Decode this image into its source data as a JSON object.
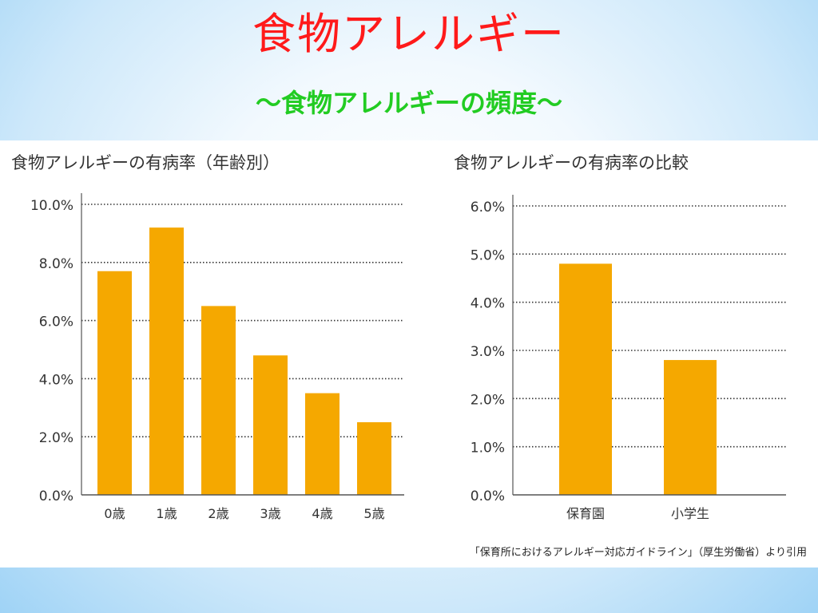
{
  "slide": {
    "title": "食物アレルギー",
    "subtitle": "～食物アレルギーの頻度～",
    "source": "「保育所におけるアレルギー対応ガイドライン」（厚生労働省）より引用"
  },
  "colors": {
    "bar": "#f5a800",
    "title": "#ff1a1a",
    "subtitle": "#22cc22",
    "grid": "#333333"
  },
  "chart_data": [
    {
      "type": "bar",
      "title": "食物アレルギーの有病率（年齢別）",
      "categories": [
        "0歳",
        "1歳",
        "2歳",
        "3歳",
        "4歳",
        "5歳"
      ],
      "values": [
        7.7,
        9.2,
        6.5,
        4.8,
        3.5,
        2.5
      ],
      "yticks": [
        "0.0%",
        "2.0%",
        "4.0%",
        "6.0%",
        "8.0%",
        "10.0%"
      ],
      "ylim": [
        0,
        10
      ],
      "xlabel": "",
      "ylabel": "",
      "grid": true,
      "unit": "%"
    },
    {
      "type": "bar",
      "title": "食物アレルギーの有病率の比較",
      "categories": [
        "保育園",
        "小学生"
      ],
      "values": [
        4.8,
        2.8
      ],
      "yticks": [
        "0.0%",
        "1.0%",
        "2.0%",
        "3.0%",
        "4.0%",
        "5.0%",
        "6.0%"
      ],
      "ylim": [
        0,
        6
      ],
      "xlabel": "",
      "ylabel": "",
      "grid": true,
      "unit": "%"
    }
  ]
}
